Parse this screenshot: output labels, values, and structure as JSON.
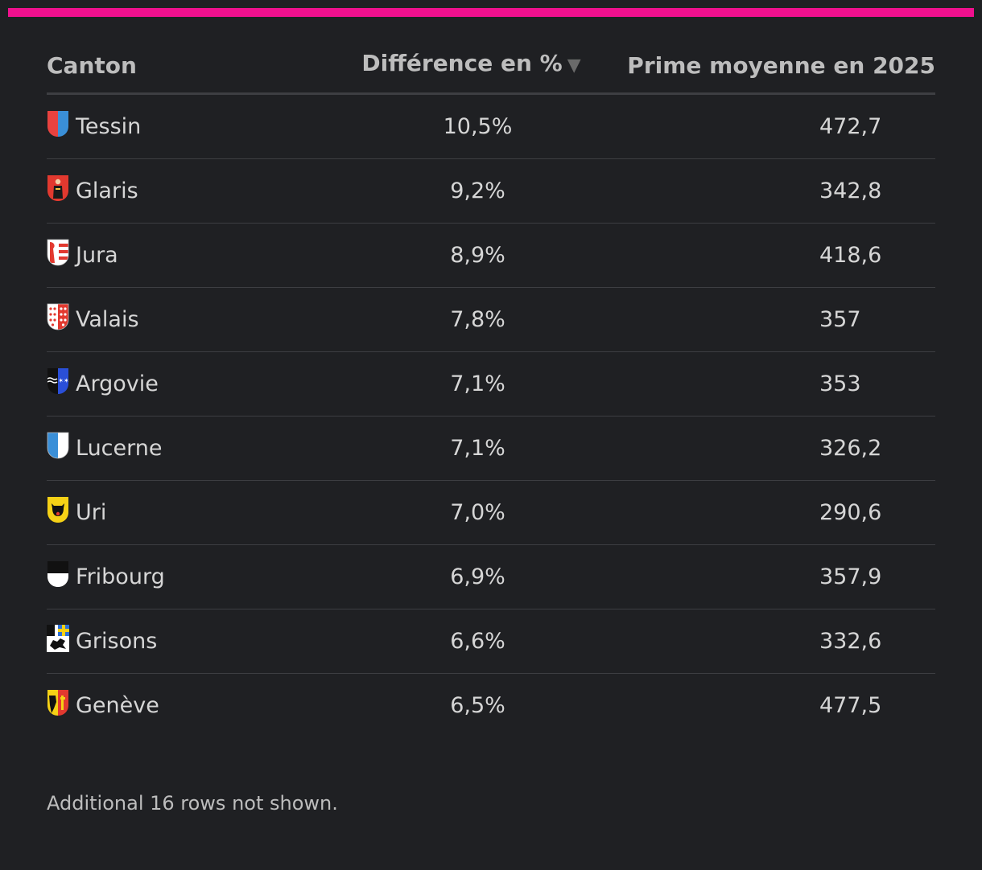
{
  "chart_data": {
    "type": "table",
    "columns": [
      "Canton",
      "Différence en %",
      "Prime moyenne en 2025"
    ],
    "sort_indicator": "▼",
    "rows": [
      {
        "canton": "Tessin",
        "diff": "10,5%",
        "prime": "472,7",
        "flag": "tessin-flag-icon"
      },
      {
        "canton": "Glaris",
        "diff": "9,2%",
        "prime": "342,8",
        "flag": "glaris-flag-icon"
      },
      {
        "canton": "Jura",
        "diff": "8,9%",
        "prime": "418,6",
        "flag": "jura-flag-icon"
      },
      {
        "canton": "Valais",
        "diff": "7,8%",
        "prime": "357",
        "flag": "valais-flag-icon"
      },
      {
        "canton": "Argovie",
        "diff": "7,1%",
        "prime": "353",
        "flag": "argovie-flag-icon"
      },
      {
        "canton": "Lucerne",
        "diff": "7,1%",
        "prime": "326,2",
        "flag": "lucerne-flag-icon"
      },
      {
        "canton": "Uri",
        "diff": "7,0%",
        "prime": "290,6",
        "flag": "uri-flag-icon"
      },
      {
        "canton": "Fribourg",
        "diff": "6,9%",
        "prime": "357,9",
        "flag": "fribourg-flag-icon"
      },
      {
        "canton": "Grisons",
        "diff": "6,6%",
        "prime": "332,6",
        "flag": "grisons-flag-icon"
      },
      {
        "canton": "Genève",
        "diff": "6,5%",
        "prime": "477,5",
        "flag": "geneve-flag-icon"
      }
    ],
    "footnote": "Additional 16 rows not shown."
  },
  "colors": {
    "background": "#1f2023",
    "accent": "#f0108e",
    "text": "#d6d6d6",
    "header_text": "#bdbdbd",
    "divider": "#3d3e42"
  }
}
